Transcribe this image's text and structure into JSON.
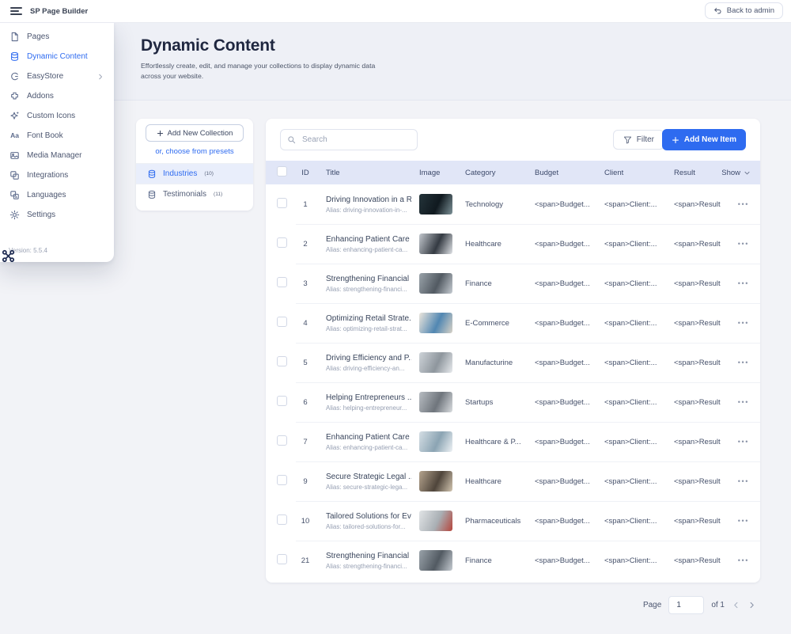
{
  "topbar": {
    "title": "SP Page Builder",
    "back_label": "Back to admin"
  },
  "page_header": {
    "title": "Dynamic Content",
    "description": "Effortlessly create, edit, and manage your collections to display dynamic data across your website."
  },
  "sidebar": {
    "items": [
      {
        "label": "Pages",
        "icon": "pages-icon",
        "active": false,
        "has_submenu": false
      },
      {
        "label": "Dynamic Content",
        "icon": "dynamic-content-icon",
        "active": true,
        "has_submenu": false
      },
      {
        "label": "EasyStore",
        "icon": "easystore-icon",
        "active": false,
        "has_submenu": true
      },
      {
        "label": "Addons",
        "icon": "addons-icon",
        "active": false,
        "has_submenu": false
      },
      {
        "label": "Custom Icons",
        "icon": "custom-icons-icon",
        "active": false,
        "has_submenu": false
      },
      {
        "label": "Font Book",
        "icon": "font-book-icon",
        "active": false,
        "has_submenu": false
      },
      {
        "label": "Media Manager",
        "icon": "media-manager-icon",
        "active": false,
        "has_submenu": false
      },
      {
        "label": "Integrations",
        "icon": "integrations-icon",
        "active": false,
        "has_submenu": false
      },
      {
        "label": "Languages",
        "icon": "languages-icon",
        "active": false,
        "has_submenu": false
      },
      {
        "label": "Settings",
        "icon": "settings-icon",
        "active": false,
        "has_submenu": false
      }
    ],
    "version": "Version: 5.5.4"
  },
  "collections_panel": {
    "add_button_label": "Add New Collection",
    "presets_link": "or, choose from presets",
    "items": [
      {
        "label": "Industries",
        "count": "(10)",
        "active": true,
        "icon": "database-icon"
      },
      {
        "label": "Testimonials",
        "count": "(11)",
        "active": false,
        "icon": "database-icon"
      }
    ]
  },
  "toolbar": {
    "search_placeholder": "Search",
    "filter_label": "Filter",
    "add_item_label": "Add New Item"
  },
  "table": {
    "headers": [
      "ID",
      "Title",
      "Image",
      "Category",
      "Budget",
      "Client",
      "Result"
    ],
    "show_label": "Show",
    "actions_glyph": "•••",
    "rows": [
      {
        "id": "1",
        "title": "Driving Innovation in a R...",
        "alias": "Alias: driving-innovation-in-...",
        "category": "Technology",
        "budget": "<span>Budget...",
        "client": "<span>Client:...",
        "result": "<span>Result",
        "thumb": [
          "#24343a",
          "#10191f",
          "#7d9298"
        ]
      },
      {
        "id": "2",
        "title": "Enhancing Patient Care ...",
        "alias": "Alias: enhancing-patient-ca...",
        "category": "Healthcare",
        "budget": "<span>Budget...",
        "client": "<span>Client:...",
        "result": "<span>Result",
        "thumb": [
          "#c3c8ce",
          "#343a42",
          "#e0e3e7"
        ]
      },
      {
        "id": "3",
        "title": "Strengthening Financial ...",
        "alias": "Alias: strengthening-financi...",
        "category": "Finance",
        "budget": "<span>Budget...",
        "client": "<span>Client:...",
        "result": "<span>Result",
        "thumb": [
          "#9aa3aa",
          "#525a62",
          "#c6ccd2"
        ]
      },
      {
        "id": "4",
        "title": "Optimizing Retail Strate...",
        "alias": "Alias: optimizing-retail-strat...",
        "category": "E-Commerce",
        "budget": "<span>Budget...",
        "client": "<span>Client:...",
        "result": "<span>Result",
        "thumb": [
          "#ece6dc",
          "#5187b2",
          "#d8d2c6"
        ]
      },
      {
        "id": "5",
        "title": "Driving Efficiency and P...",
        "alias": "Alias: driving-efficiency-an...",
        "category": "Manufacturine",
        "budget": "<span>Budget...",
        "client": "<span>Client:...",
        "result": "<span>Result",
        "thumb": [
          "#ced3d8",
          "#8e969d",
          "#e7eaed"
        ]
      },
      {
        "id": "6",
        "title": "Helping Entrepreneurs ...",
        "alias": "Alias: helping-entrepreneur...",
        "category": "Startups",
        "budget": "<span>Budget...",
        "client": "<span>Client:...",
        "result": "<span>Result",
        "thumb": [
          "#b8bdc2",
          "#6f757c",
          "#dadde0"
        ]
      },
      {
        "id": "7",
        "title": "Enhancing Patient Care ...",
        "alias": "Alias: enhancing-patient-ca...",
        "category": "Healthcare & P...",
        "budget": "<span>Budget...",
        "client": "<span>Client:...",
        "result": "<span>Result",
        "thumb": [
          "#d5dee4",
          "#8ba4b3",
          "#eef2f5"
        ]
      },
      {
        "id": "9",
        "title": "Secure Strategic Legal ...",
        "alias": "Alias: secure-strategic-lega...",
        "category": "Healthcare",
        "budget": "<span>Budget...",
        "client": "<span>Client:...",
        "result": "<span>Result",
        "thumb": [
          "#b5a48e",
          "#4f453b",
          "#d3c6b1"
        ]
      },
      {
        "id": "10",
        "title": "Tailored Solutions for Ev...",
        "alias": "Alias: tailored-solutions-for...",
        "category": "Pharmaceuticals",
        "budget": "<span>Budget...",
        "client": "<span>Client:...",
        "result": "<span>Result",
        "thumb": [
          "#e1e4e6",
          "#a9afb4",
          "#b5453c"
        ]
      },
      {
        "id": "21",
        "title": "Strengthening Financial ...",
        "alias": "Alias: strengthening-financi...",
        "category": "Finance",
        "budget": "<span>Budget...",
        "client": "<span>Client:...",
        "result": "<span>Result",
        "thumb": [
          "#9aa3aa",
          "#525a62",
          "#c6ccd2"
        ]
      }
    ]
  },
  "pagination": {
    "label": "Page",
    "value": "1",
    "of_label": "of 1"
  },
  "colors": {
    "accent": "#2e6bf0",
    "table_header_bg": "#e1e6f7",
    "active_item_bg": "#e9eefb",
    "page_bg": "#f2f3f7"
  }
}
